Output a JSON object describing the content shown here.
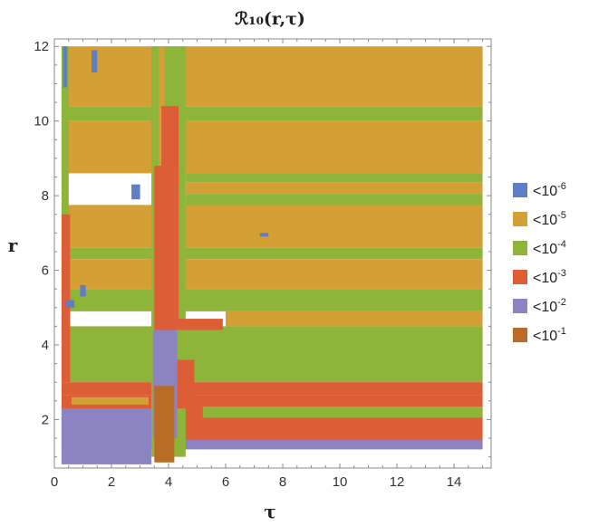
{
  "chart_data": {
    "type": "heatmap",
    "title": "ℛ₁₀(r,τ)",
    "xlabel": "τ",
    "ylabel": "r",
    "xlim": [
      0,
      15.3
    ],
    "ylim": [
      0.7,
      12.2
    ],
    "x_ticks": [
      "0",
      "2",
      "4",
      "6",
      "8",
      "10",
      "12",
      "14"
    ],
    "y_ticks": [
      "2",
      "4",
      "6",
      "8",
      "10",
      "12"
    ],
    "data_extent": {
      "x": [
        0.25,
        15.0
      ],
      "y": [
        0.8,
        12.0
      ]
    },
    "grid": false,
    "legend_position": "right",
    "legend": [
      {
        "label": "<10",
        "exponent": "-6",
        "color": "#5f7fc4"
      },
      {
        "label": "<10",
        "exponent": "-5",
        "color": "#d4a035"
      },
      {
        "label": "<10",
        "exponent": "-4",
        "color": "#8fb43a"
      },
      {
        "label": "<10",
        "exponent": "-3",
        "color": "#dd5d36"
      },
      {
        "label": "<10",
        "exponent": "-2",
        "color": "#8c84c2"
      },
      {
        "label": "<10",
        "exponent": "-1",
        "color": "#b86c25"
      }
    ],
    "bands": [
      {
        "level": 1,
        "x": [
          0.25,
          15.0
        ],
        "y": [
          10.4,
          12.0
        ]
      },
      {
        "level": 2,
        "x": [
          0.25,
          15.0
        ],
        "y": [
          10.0,
          10.4
        ]
      },
      {
        "level": 1,
        "x": [
          0.25,
          15.0
        ],
        "y": [
          8.6,
          10.0
        ]
      },
      {
        "level": 2,
        "x": [
          4.6,
          15.0
        ],
        "y": [
          8.35,
          8.6
        ]
      },
      {
        "level": 1,
        "x": [
          4.6,
          15.0
        ],
        "y": [
          8.05,
          8.35
        ]
      },
      {
        "level": 2,
        "x": [
          4.6,
          15.0
        ],
        "y": [
          7.75,
          8.05
        ]
      },
      {
        "level": 1,
        "x": [
          0.25,
          15.0
        ],
        "y": [
          6.6,
          7.75
        ]
      },
      {
        "level": 2,
        "x": [
          0.25,
          15.0
        ],
        "y": [
          6.3,
          6.6
        ]
      },
      {
        "level": 1,
        "x": [
          0.25,
          15.0
        ],
        "y": [
          5.5,
          6.3
        ]
      },
      {
        "level": 2,
        "x": [
          0.25,
          15.0
        ],
        "y": [
          4.9,
          5.5
        ]
      },
      {
        "level": 1,
        "x": [
          6.0,
          15.0
        ],
        "y": [
          4.5,
          4.9
        ]
      },
      {
        "level": 2,
        "x": [
          0.25,
          15.0
        ],
        "y": [
          3.6,
          4.5
        ]
      },
      {
        "level": 2,
        "x": [
          0.25,
          15.0
        ],
        "y": [
          3.0,
          3.6
        ]
      },
      {
        "level": 3,
        "x": [
          0.25,
          15.0
        ],
        "y": [
          2.65,
          3.0
        ]
      },
      {
        "level": 3,
        "x": [
          0.25,
          15.0
        ],
        "y": [
          1.25,
          2.65
        ]
      },
      {
        "level": 2,
        "x": [
          5.2,
          15.0
        ],
        "y": [
          2.05,
          2.35
        ]
      },
      {
        "level": 4,
        "x": [
          0.25,
          3.4
        ],
        "y": [
          0.8,
          2.3
        ]
      },
      {
        "level": 4,
        "x": [
          3.4,
          15.0
        ],
        "y": [
          1.2,
          1.45
        ]
      },
      {
        "level": 1,
        "x": [
          0.6,
          3.3
        ],
        "y": [
          2.4,
          2.6
        ]
      },
      {
        "level": 3,
        "x": [
          0.25,
          0.55
        ],
        "y": [
          3.0,
          7.5
        ]
      },
      {
        "level": 2,
        "x": [
          0.25,
          0.5
        ],
        "y": [
          7.5,
          12.0
        ]
      },
      {
        "level": 0,
        "x": [
          0.3,
          0.45
        ],
        "y": [
          10.9,
          12.0
        ]
      },
      {
        "level": 0,
        "x": [
          1.3,
          1.5
        ],
        "y": [
          11.3,
          11.9
        ]
      },
      {
        "level": 2,
        "x": [
          3.4,
          4.6
        ],
        "y": [
          1.0,
          12.0
        ]
      },
      {
        "level": 1,
        "x": [
          3.65,
          3.85
        ],
        "y": [
          6.0,
          12.0
        ]
      },
      {
        "level": 3,
        "x": [
          3.5,
          4.35
        ],
        "y": [
          4.4,
          8.8
        ]
      },
      {
        "level": 3,
        "x": [
          3.75,
          4.35
        ],
        "y": [
          8.8,
          10.4
        ]
      },
      {
        "level": 4,
        "x": [
          3.45,
          4.3
        ],
        "y": [
          1.5,
          4.4
        ]
      },
      {
        "level": 5,
        "x": [
          3.5,
          4.2
        ],
        "y": [
          0.85,
          2.9
        ]
      },
      {
        "level": 3,
        "x": [
          4.3,
          4.9
        ],
        "y": [
          2.3,
          3.6
        ]
      },
      {
        "level": 3,
        "x": [
          4.0,
          5.9
        ],
        "y": [
          4.4,
          4.7
        ]
      },
      {
        "level": 0,
        "x": [
          2.7,
          3.0
        ],
        "y": [
          7.9,
          8.3
        ]
      },
      {
        "level": 0,
        "x": [
          7.2,
          7.5
        ],
        "y": [
          6.9,
          7.0
        ]
      },
      {
        "level": 0,
        "x": [
          0.9,
          1.1
        ],
        "y": [
          5.3,
          5.6
        ]
      },
      {
        "level": 0,
        "x": [
          0.4,
          0.7
        ],
        "y": [
          5.0,
          5.2
        ]
      }
    ]
  }
}
